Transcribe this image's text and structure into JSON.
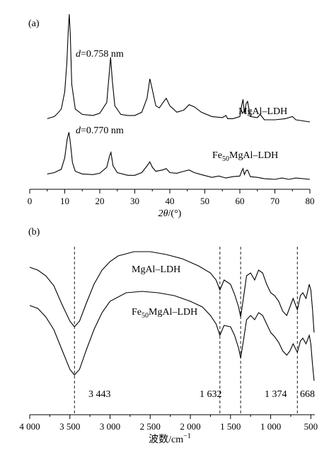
{
  "chart_data": [
    {
      "panel_label": "(a)",
      "type": "line",
      "xlabel_var": "2θ",
      "xlabel_unit": "/(°)",
      "xlim": [
        0,
        80
      ],
      "x_ticks": [
        "0",
        "10",
        "20",
        "30",
        "40",
        "50",
        "60",
        "70",
        "80"
      ],
      "series": [
        {
          "name": "MgAl–LDH",
          "annotation_d": "d",
          "annotation_val": "=0.758 nm",
          "points": [
            [
              5,
              0.03
            ],
            [
              7,
              0.05
            ],
            [
              8,
              0.08
            ],
            [
              9,
              0.12
            ],
            [
              10,
              0.28
            ],
            [
              10.6,
              0.55
            ],
            [
              11,
              0.85
            ],
            [
              11.3,
              1.0
            ],
            [
              11.6,
              0.8
            ],
            [
              12,
              0.35
            ],
            [
              13,
              0.12
            ],
            [
              15,
              0.07
            ],
            [
              18,
              0.06
            ],
            [
              20,
              0.08
            ],
            [
              22,
              0.18
            ],
            [
              22.7,
              0.45
            ],
            [
              23.1,
              0.6
            ],
            [
              23.6,
              0.38
            ],
            [
              24.3,
              0.15
            ],
            [
              26,
              0.07
            ],
            [
              28,
              0.06
            ],
            [
              30,
              0.06
            ],
            [
              32,
              0.09
            ],
            [
              33.5,
              0.22
            ],
            [
              34.3,
              0.4
            ],
            [
              35,
              0.3
            ],
            [
              36,
              0.15
            ],
            [
              37,
              0.13
            ],
            [
              38.5,
              0.2
            ],
            [
              39,
              0.22
            ],
            [
              40,
              0.15
            ],
            [
              42,
              0.09
            ],
            [
              44,
              0.11
            ],
            [
              45.5,
              0.16
            ],
            [
              47,
              0.14
            ],
            [
              49,
              0.09
            ],
            [
              52,
              0.05
            ],
            [
              55,
              0.04
            ],
            [
              56,
              0.06
            ],
            [
              56.5,
              0.03
            ],
            [
              58,
              0.03
            ],
            [
              60,
              0.05
            ],
            [
              60.5,
              0.15
            ],
            [
              60.9,
              0.21
            ],
            [
              61.3,
              0.08
            ],
            [
              61.8,
              0.17
            ],
            [
              62.2,
              0.19
            ],
            [
              63,
              0.05
            ],
            [
              65,
              0.04
            ],
            [
              65.8,
              0.07
            ],
            [
              67,
              0.02
            ],
            [
              70,
              0.02
            ],
            [
              73,
              0.03
            ],
            [
              75,
              0.05
            ],
            [
              76,
              0.02
            ],
            [
              80,
              0.0
            ]
          ]
        },
        {
          "name": "Fe50MgAl–LDH",
          "annotation_d": "d",
          "annotation_val": "=0.770 nm",
          "points": [
            [
              5,
              0.08
            ],
            [
              7,
              0.1
            ],
            [
              9,
              0.15
            ],
            [
              10,
              0.32
            ],
            [
              10.7,
              0.6
            ],
            [
              11.2,
              0.7
            ],
            [
              11.6,
              0.55
            ],
            [
              12.2,
              0.25
            ],
            [
              13,
              0.12
            ],
            [
              15,
              0.08
            ],
            [
              18,
              0.07
            ],
            [
              20,
              0.09
            ],
            [
              22,
              0.18
            ],
            [
              22.8,
              0.35
            ],
            [
              23.2,
              0.4
            ],
            [
              23.8,
              0.2
            ],
            [
              25,
              0.1
            ],
            [
              28,
              0.06
            ],
            [
              30,
              0.06
            ],
            [
              32,
              0.1
            ],
            [
              33.5,
              0.2
            ],
            [
              34.3,
              0.26
            ],
            [
              35,
              0.18
            ],
            [
              36,
              0.12
            ],
            [
              38,
              0.14
            ],
            [
              39,
              0.16
            ],
            [
              40,
              0.1
            ],
            [
              42,
              0.09
            ],
            [
              44,
              0.12
            ],
            [
              45.5,
              0.14
            ],
            [
              47,
              0.1
            ],
            [
              49,
              0.07
            ],
            [
              52,
              0.03
            ],
            [
              54,
              0.05
            ],
            [
              56,
              0.02
            ],
            [
              58,
              0.04
            ],
            [
              60,
              0.05
            ],
            [
              60.5,
              0.12
            ],
            [
              60.9,
              0.16
            ],
            [
              61.3,
              0.07
            ],
            [
              61.8,
              0.13
            ],
            [
              62.2,
              0.14
            ],
            [
              63,
              0.04
            ],
            [
              65,
              0.03
            ],
            [
              67,
              0.01
            ],
            [
              70,
              0.0
            ],
            [
              72,
              0.02
            ],
            [
              74,
              0.0
            ],
            [
              76,
              0.02
            ],
            [
              80,
              0.0
            ]
          ]
        }
      ]
    },
    {
      "panel_label": "(b)",
      "type": "line",
      "xlabel": "波数/cm",
      "xlabel_sup": "−1",
      "xlim": [
        4000,
        450
      ],
      "x_ticks": [
        "4 000",
        "3 500",
        "3 000",
        "2 500",
        "2 000",
        "1 500",
        "1 000",
        "500"
      ],
      "x_tick_values": [
        4000,
        3500,
        3000,
        2500,
        2000,
        1500,
        1000,
        500
      ],
      "marker_lines": [
        3443,
        1632,
        1374,
        668
      ],
      "marker_labels": [
        "3 443",
        "1 632",
        "1 374",
        "668"
      ],
      "series": [
        {
          "name": "MgAl–LDH",
          "points": [
            [
              4000,
              0.84
            ],
            [
              3900,
              0.82
            ],
            [
              3800,
              0.78
            ],
            [
              3700,
              0.71
            ],
            [
              3600,
              0.58
            ],
            [
              3500,
              0.46
            ],
            [
              3443,
              0.42
            ],
            [
              3380,
              0.46
            ],
            [
              3300,
              0.58
            ],
            [
              3200,
              0.72
            ],
            [
              3100,
              0.82
            ],
            [
              3000,
              0.88
            ],
            [
              2900,
              0.92
            ],
            [
              2700,
              0.95
            ],
            [
              2500,
              0.95
            ],
            [
              2300,
              0.93
            ],
            [
              2100,
              0.9
            ],
            [
              1900,
              0.85
            ],
            [
              1750,
              0.8
            ],
            [
              1680,
              0.75
            ],
            [
              1632,
              0.68
            ],
            [
              1580,
              0.75
            ],
            [
              1500,
              0.72
            ],
            [
              1450,
              0.65
            ],
            [
              1400,
              0.56
            ],
            [
              1374,
              0.49
            ],
            [
              1340,
              0.62
            ],
            [
              1300,
              0.78
            ],
            [
              1250,
              0.8
            ],
            [
              1200,
              0.75
            ],
            [
              1150,
              0.82
            ],
            [
              1100,
              0.8
            ],
            [
              1050,
              0.72
            ],
            [
              1000,
              0.66
            ],
            [
              950,
              0.64
            ],
            [
              900,
              0.6
            ],
            [
              850,
              0.53
            ],
            [
              800,
              0.5
            ],
            [
              760,
              0.56
            ],
            [
              720,
              0.62
            ],
            [
              668,
              0.54
            ],
            [
              630,
              0.64
            ],
            [
              600,
              0.66
            ],
            [
              560,
              0.62
            ],
            [
              520,
              0.72
            ],
            [
              500,
              0.68
            ],
            [
              480,
              0.55
            ],
            [
              460,
              0.38
            ]
          ]
        },
        {
          "name": "Fe50MgAl–LDH",
          "points": [
            [
              4000,
              0.57
            ],
            [
              3900,
              0.55
            ],
            [
              3800,
              0.49
            ],
            [
              3700,
              0.4
            ],
            [
              3600,
              0.26
            ],
            [
              3500,
              0.12
            ],
            [
              3443,
              0.08
            ],
            [
              3380,
              0.12
            ],
            [
              3300,
              0.25
            ],
            [
              3200,
              0.4
            ],
            [
              3100,
              0.52
            ],
            [
              3000,
              0.6
            ],
            [
              2800,
              0.66
            ],
            [
              2600,
              0.67
            ],
            [
              2400,
              0.66
            ],
            [
              2200,
              0.64
            ],
            [
              2000,
              0.6
            ],
            [
              1850,
              0.56
            ],
            [
              1750,
              0.5
            ],
            [
              1680,
              0.44
            ],
            [
              1632,
              0.36
            ],
            [
              1580,
              0.43
            ],
            [
              1500,
              0.42
            ],
            [
              1450,
              0.36
            ],
            [
              1400,
              0.27
            ],
            [
              1374,
              0.2
            ],
            [
              1340,
              0.32
            ],
            [
              1300,
              0.47
            ],
            [
              1250,
              0.5
            ],
            [
              1200,
              0.47
            ],
            [
              1150,
              0.52
            ],
            [
              1100,
              0.5
            ],
            [
              1050,
              0.44
            ],
            [
              1000,
              0.38
            ],
            [
              950,
              0.35
            ],
            [
              900,
              0.31
            ],
            [
              850,
              0.25
            ],
            [
              800,
              0.22
            ],
            [
              760,
              0.25
            ],
            [
              720,
              0.3
            ],
            [
              668,
              0.24
            ],
            [
              630,
              0.32
            ],
            [
              600,
              0.34
            ],
            [
              560,
              0.3
            ],
            [
              520,
              0.36
            ],
            [
              500,
              0.3
            ],
            [
              480,
              0.16
            ],
            [
              460,
              0.04
            ]
          ]
        }
      ]
    }
  ]
}
